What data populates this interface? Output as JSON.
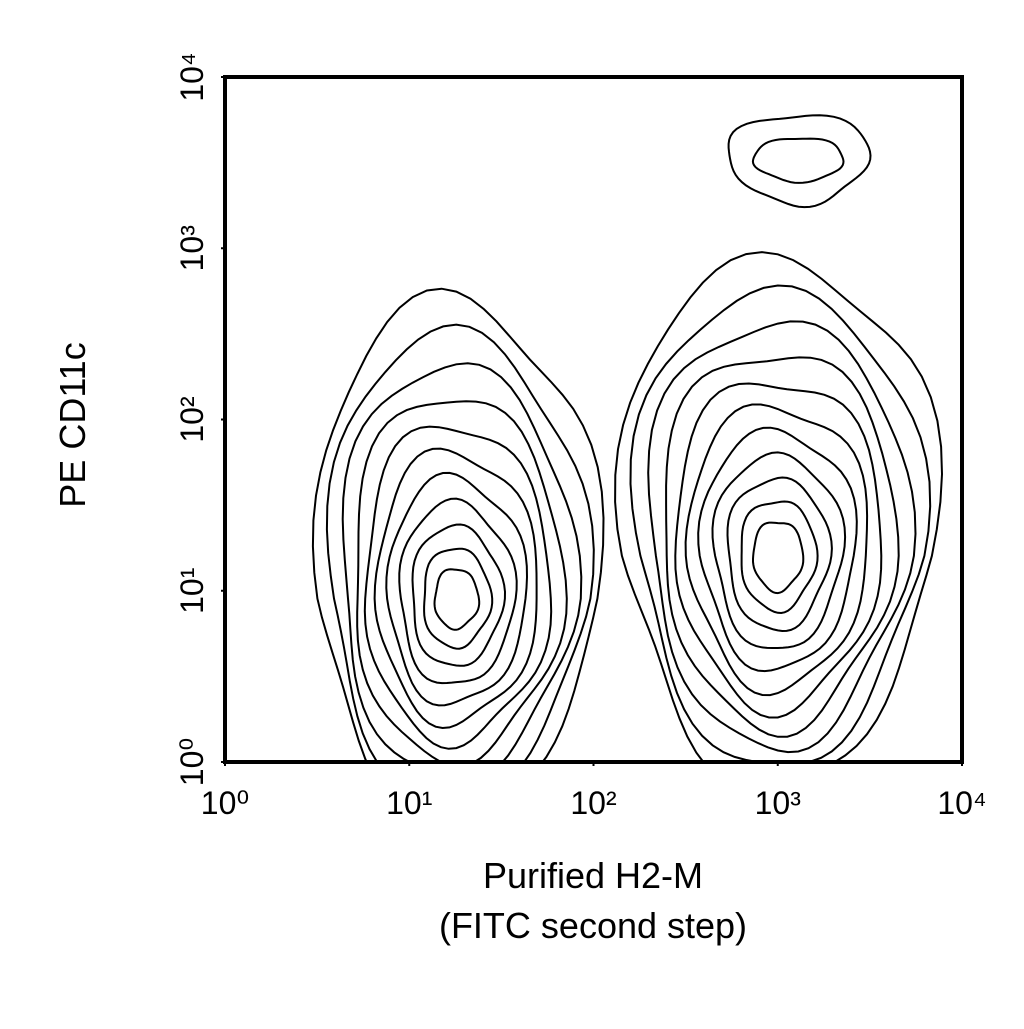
{
  "chart_data": {
    "type": "contour",
    "xlabel": [
      "Purified H2-M",
      "(FITC second step)"
    ],
    "ylabel": "PE CD11c",
    "xscale": "log",
    "yscale": "log",
    "xlim": [
      1,
      10000
    ],
    "ylim": [
      1,
      10000
    ],
    "xticks": [
      {
        "value": 1,
        "label": "10⁰"
      },
      {
        "value": 10,
        "label": "10¹"
      },
      {
        "value": 100,
        "label": "10²"
      },
      {
        "value": 1000,
        "label": "10³"
      },
      {
        "value": 10000,
        "label": "10⁴"
      }
    ],
    "yticks": [
      {
        "value": 1,
        "label": "10⁰"
      },
      {
        "value": 10,
        "label": "10¹"
      },
      {
        "value": 100,
        "label": "10²"
      },
      {
        "value": 1000,
        "label": "10³"
      },
      {
        "value": 10000,
        "label": "10⁴"
      }
    ],
    "peaks": {
      "x": [
        18,
        1000,
        1300
      ],
      "y": [
        9,
        16,
        3300
      ]
    },
    "color": "#000000"
  }
}
